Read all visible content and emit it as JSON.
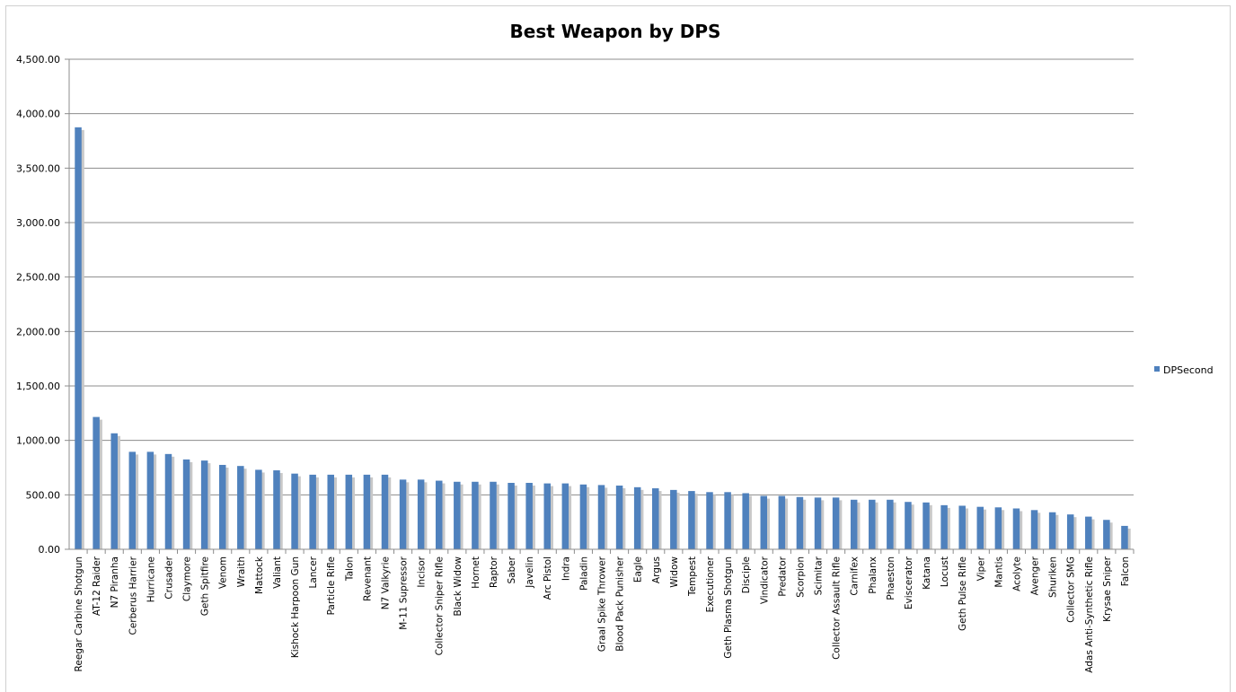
{
  "chart_data": {
    "type": "bar",
    "title": "Best Weapon by DPS",
    "xlabel": "",
    "ylabel": "",
    "ylim": [
      0,
      4500
    ],
    "yticks": [
      "0.00",
      "500.00",
      "1,000.00",
      "1,500.00",
      "2,000.00",
      "2,500.00",
      "3,000.00",
      "3,500.00",
      "4,000.00",
      "4,500.00"
    ],
    "grid": true,
    "legend_position": "right",
    "colors": {
      "bar": "#4f81bd",
      "shadow": "#c8c8c8",
      "grid": "#8c8c8c"
    },
    "categories": [
      "Reegar Carbine Shotgun",
      "AT-12 Raider",
      "N7 Piranha",
      "Cerberus Harrier",
      "Hurricane",
      "Crusader",
      "Claymore",
      "Geth Spitfire",
      "Venom",
      "Wraith",
      "Mattock",
      "Valiant",
      "Kishock Harpoon Gun",
      "Lancer",
      "Particle Rifle",
      "Talon",
      "Revenant",
      "N7 Valkyrie",
      "M-11 Supressor",
      "Incisor",
      "Collector Sniper Rifle",
      "Black Widow",
      "Hornet",
      "Raptor",
      "Saber",
      "Javelin",
      "Arc Pistol",
      "Indra",
      "Paladin",
      "Graal Spike Thrower",
      "Blood Pack Punisher",
      "Eagle",
      "Argus",
      "Widow",
      "Tempest",
      "Executioner",
      "Geth Plasma Shotgun",
      "Disciple",
      "Vindicator",
      "Predator",
      "Scorpion",
      "Scimitar",
      "Collector Assault Rifle",
      "Carnifex",
      "Phalanx",
      "Phaeston",
      "Eviscerator",
      "Katana",
      "Locust",
      "Geth Pulse Rifle",
      "Viper",
      "Mantis",
      "Acolyte",
      "Avenger",
      "Shuriken",
      "Collector SMG",
      "Adas Anti-Synthetic Rifle",
      "Krysae Sniper",
      "Falcon"
    ],
    "series": [
      {
        "name": "DPSecond",
        "values": [
          3875,
          1215,
          1065,
          895,
          895,
          875,
          825,
          815,
          775,
          765,
          730,
          725,
          695,
          685,
          685,
          685,
          685,
          685,
          640,
          640,
          630,
          620,
          620,
          620,
          610,
          610,
          605,
          605,
          595,
          590,
          585,
          570,
          560,
          545,
          535,
          525,
          525,
          515,
          490,
          490,
          480,
          475,
          475,
          455,
          455,
          455,
          435,
          430,
          405,
          400,
          390,
          385,
          375,
          360,
          340,
          320,
          300,
          270,
          215
        ]
      }
    ]
  }
}
